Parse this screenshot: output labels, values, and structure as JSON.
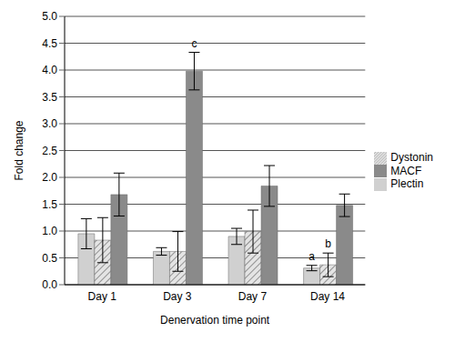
{
  "chart_data": {
    "type": "bar",
    "x_label": "Denervation time point",
    "y_label": "Fold change",
    "categories": [
      "Day 1",
      "Day 3",
      "Day 7",
      "Day 14"
    ],
    "series": [
      {
        "name": "Plectin",
        "color": "#d0d0d0",
        "values": [
          0.95,
          0.62,
          0.9,
          0.31
        ],
        "errors": [
          0.28,
          0.07,
          0.15,
          0.05
        ],
        "annotations": [
          null,
          null,
          null,
          "a"
        ]
      },
      {
        "name": "Dystonin",
        "color": "#e4e4e4",
        "values": [
          0.83,
          0.62,
          0.99,
          0.37
        ],
        "errors": [
          0.42,
          0.37,
          0.4,
          0.22
        ],
        "annotations": [
          null,
          null,
          null,
          "b"
        ]
      },
      {
        "name": "MACF",
        "color": "#8a8a8a",
        "values": [
          1.68,
          3.98,
          1.84,
          1.48
        ],
        "errors": [
          0.4,
          0.35,
          0.38,
          0.21
        ],
        "annotations": [
          null,
          "c",
          null,
          null
        ]
      }
    ],
    "ylim": [
      0,
      5
    ],
    "yticks": [
      {
        "value": 0,
        "label": "0.0"
      },
      {
        "value": 0.5,
        "label": "0.5"
      },
      {
        "value": 1,
        "label": "1.0"
      },
      {
        "value": 1.5,
        "label": "1.5"
      },
      {
        "value": 2,
        "label": "2.0"
      },
      {
        "value": 2.5,
        "label": "2.5"
      },
      {
        "value": 3,
        "label": "3.0"
      },
      {
        "value": 3.5,
        "label": "3.5"
      },
      {
        "value": 4,
        "label": "4.0"
      },
      {
        "value": 4.5,
        "label": "4.5"
      },
      {
        "value": 5,
        "label": "5.0"
      }
    ],
    "grid": true,
    "legend": "right"
  }
}
